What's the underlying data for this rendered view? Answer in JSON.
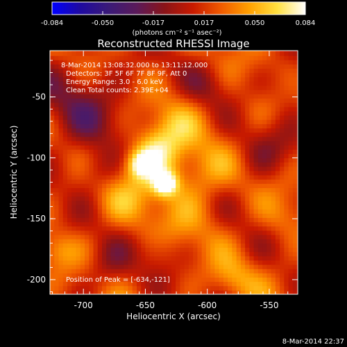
{
  "colors": {
    "background": "#000000",
    "text": "#ffffff",
    "colormap": [
      "#0000ff",
      "#1f0aa0",
      "#3a1a78",
      "#5a1a5a",
      "#8a1418",
      "#c81a00",
      "#f05a00",
      "#ffa000",
      "#ffe040",
      "#ffffff"
    ]
  },
  "chart_data": {
    "type": "heatmap",
    "title": "Reconstructed RHESSI Image",
    "xlabel": "Heliocentric X (arcsec)",
    "ylabel": "Heliocentric Y (arcsec)",
    "xlim": [
      -727,
      -527
    ],
    "ylim": [
      -212,
      -12
    ],
    "x_ticks": [
      -700,
      -650,
      -600,
      -550
    ],
    "y_ticks": [
      -50,
      -100,
      -150,
      -200
    ],
    "info_lines": [
      "8-Mar-2014 13:08:32.000 to 13:11:12.000",
      "Detectors: 3F 5F 6F 7F 8F 9F, Att 0",
      "Energy Range: 3.0 - 6.0 keV",
      "Clean    Total counts: 2.39E+04"
    ],
    "peak_label": "Position of Peak = [-634,-121]",
    "peak": [
      -634,
      -121
    ],
    "secondary_source": [
      -654,
      -105
    ],
    "colorbar": {
      "min": -0.084,
      "max": 0.084,
      "ticks": [
        "-0.084",
        "-0.050",
        "-0.017",
        "0.017",
        "0.050",
        "0.084"
      ],
      "unit_label": "(photons cm⁻² s⁻¹ asec⁻²)"
    },
    "grid": false
  },
  "footer": {
    "timestamp": "8-Mar-2014 22:37"
  }
}
